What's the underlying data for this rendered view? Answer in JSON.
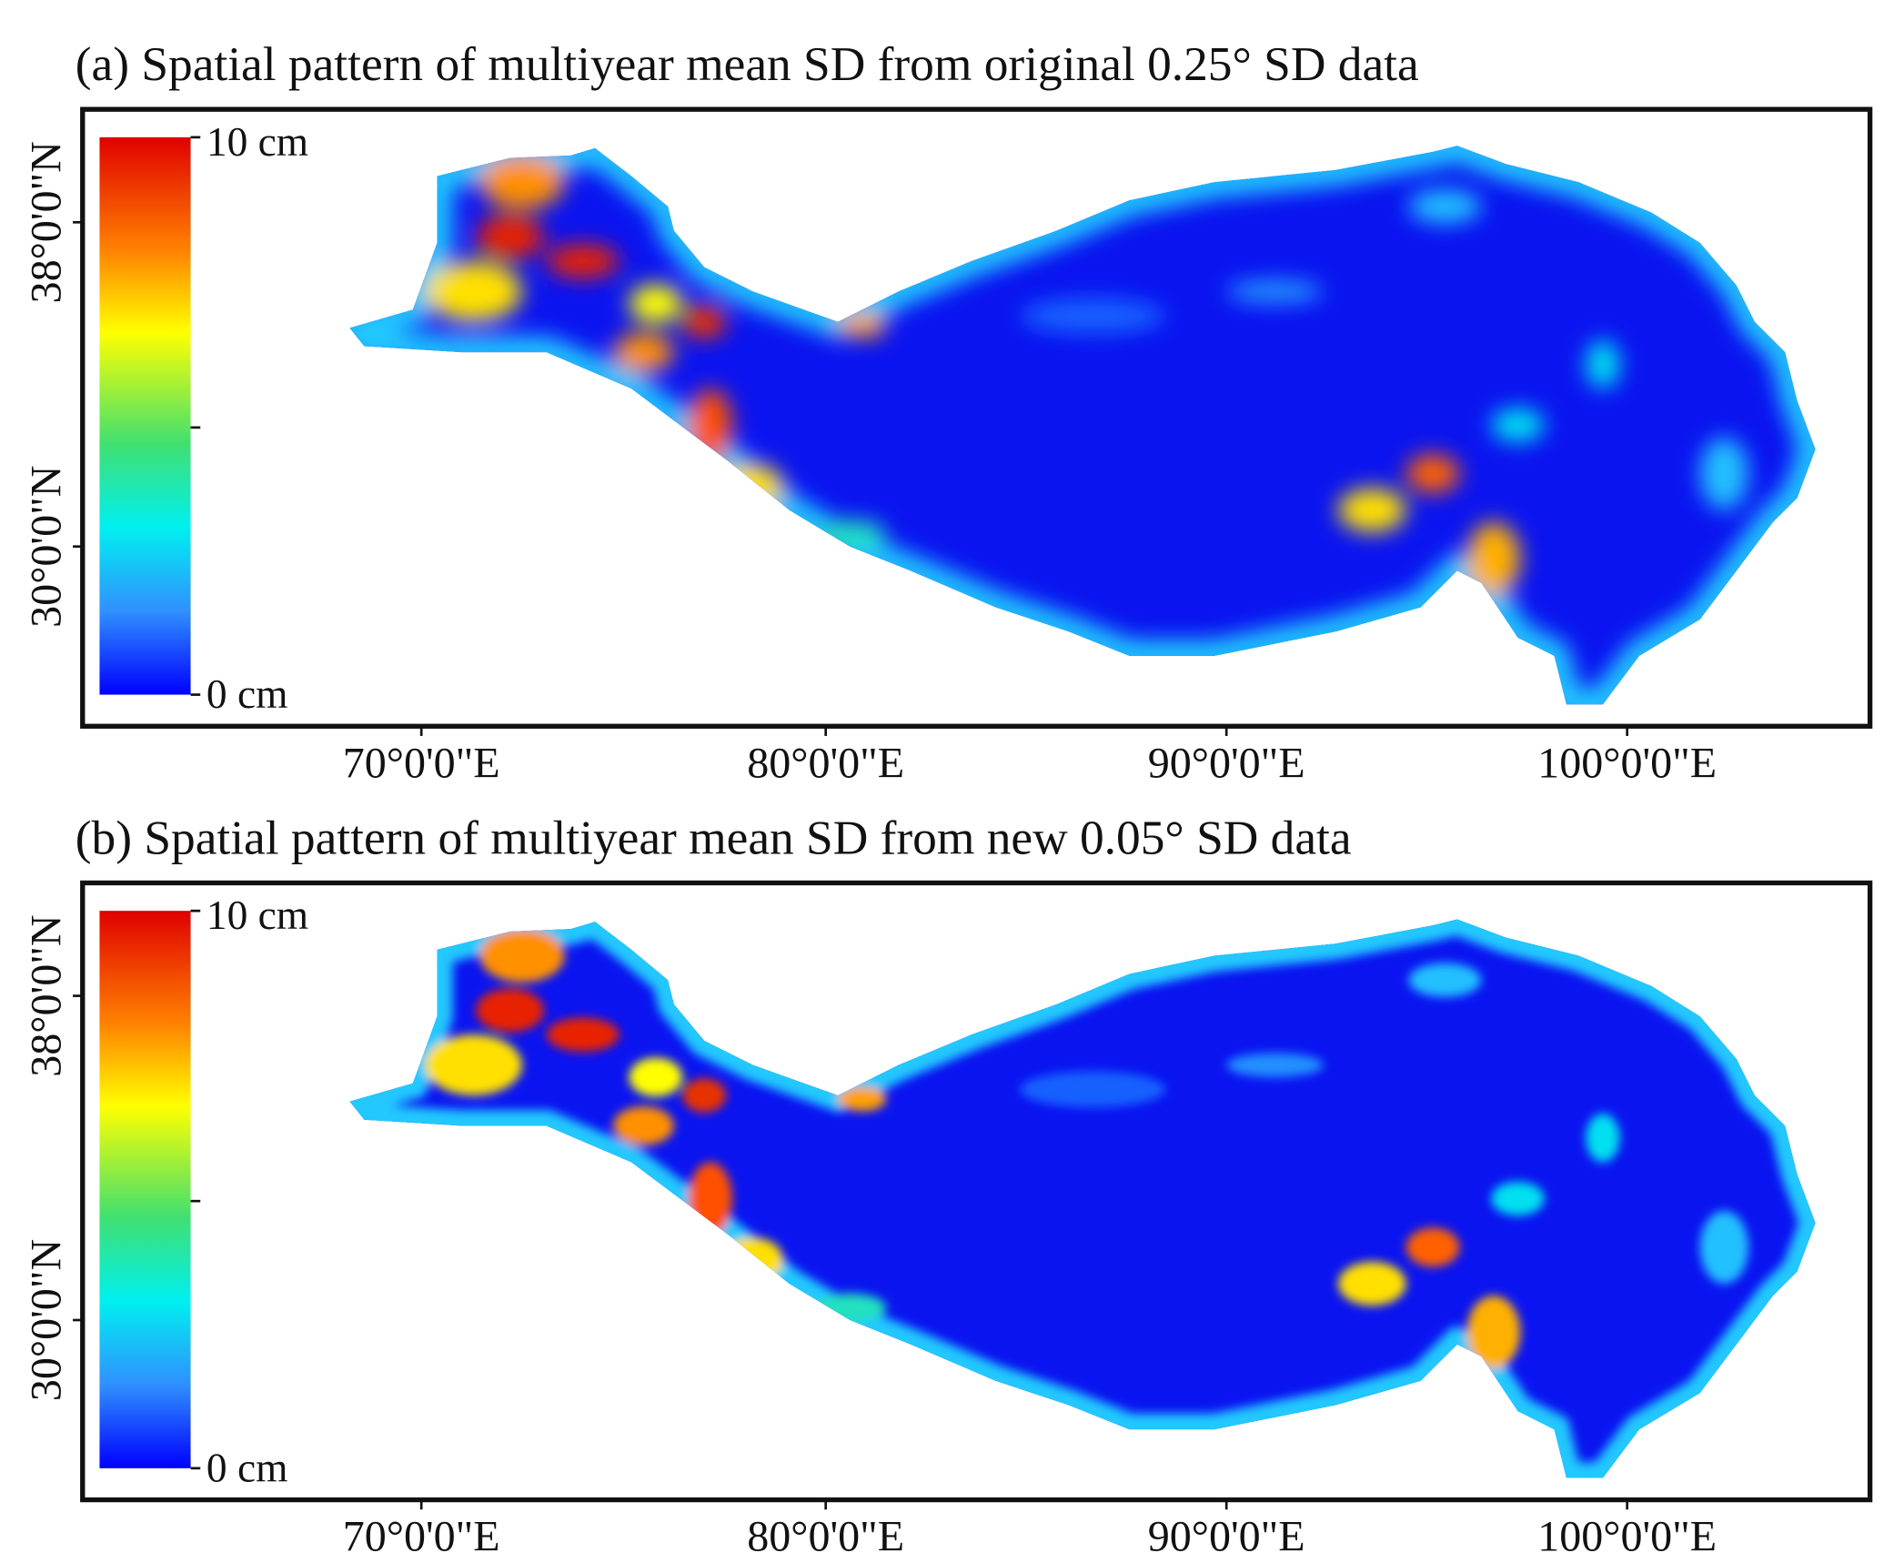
{
  "panels": [
    {
      "title": "(a) Spatial pattern of multiyear mean SD from original 0.25° SD data",
      "colorbar": {
        "max_label": "10 cm",
        "min_label": "0 cm"
      },
      "y_ticks": [
        "38°0'0\"N",
        "30°0'0\"N"
      ],
      "x_ticks": [
        "70°0'0\"E",
        "80°0'0\"E",
        "90°0'0\"E",
        "100°0'0\"E"
      ]
    },
    {
      "title": "(b) Spatial pattern of multiyear mean SD from new 0.05° SD data",
      "colorbar": {
        "max_label": "10 cm",
        "min_label": "0 cm"
      },
      "y_ticks": [
        "38°0'0\"N",
        "30°0'0\"N"
      ],
      "x_ticks": [
        "70°0'0\"E",
        "80°0'0\"E",
        "90°0'0\"E",
        "100°0'0\"E"
      ]
    }
  ]
}
